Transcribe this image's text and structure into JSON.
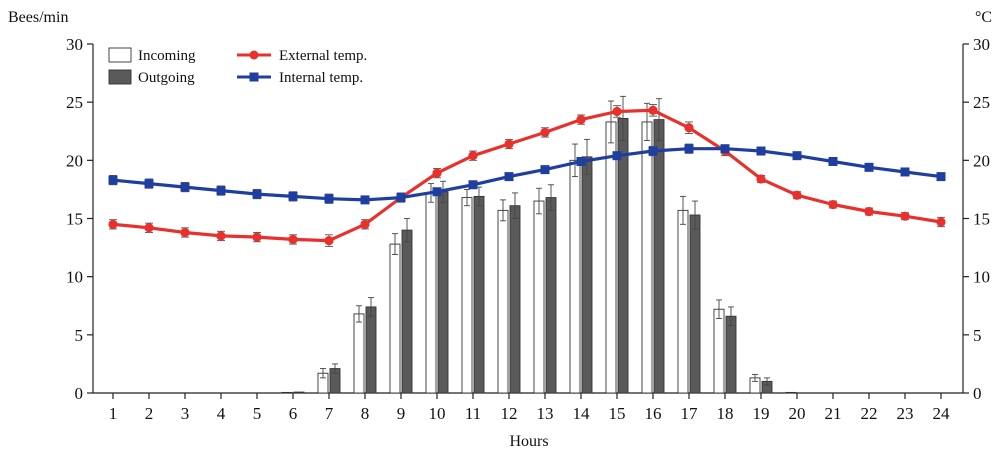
{
  "chart_data": {
    "type": "bar+line",
    "x": [
      1,
      2,
      3,
      4,
      5,
      6,
      7,
      8,
      9,
      10,
      11,
      12,
      13,
      14,
      15,
      16,
      17,
      18,
      19,
      20,
      21,
      22,
      23,
      24
    ],
    "xlabel": "Hours",
    "ylabel_left": "Bees/min",
    "ylabel_right": "°C",
    "ylim_left": [
      0,
      30
    ],
    "ylim_right": [
      0,
      30
    ],
    "yticks": [
      0,
      5,
      10,
      15,
      20,
      25,
      30
    ],
    "bar_series": [
      {
        "name": "Incoming",
        "color": "#ffffff",
        "values": [
          0,
          0,
          0,
          0,
          0,
          0.05,
          1.7,
          6.8,
          12.8,
          17.2,
          16.8,
          15.7,
          16.5,
          20.0,
          23.3,
          23.3,
          15.7,
          7.2,
          1.3,
          0.05,
          0,
          0,
          0,
          0
        ],
        "errors": [
          0,
          0,
          0,
          0,
          0,
          0.1,
          0.4,
          0.7,
          0.9,
          0.8,
          0.7,
          0.9,
          1.1,
          1.4,
          1.8,
          1.6,
          1.2,
          0.8,
          0.3,
          0.05,
          0,
          0,
          0,
          0
        ]
      },
      {
        "name": "Outgoing",
        "color": "#5a5a5a",
        "values": [
          0,
          0,
          0,
          0,
          0,
          0.08,
          2.1,
          7.4,
          14.0,
          17.3,
          16.9,
          16.1,
          16.8,
          20.3,
          23.6,
          23.5,
          15.3,
          6.6,
          1.0,
          0,
          0,
          0,
          0,
          0
        ],
        "errors": [
          0,
          0,
          0,
          0,
          0,
          0.1,
          0.4,
          0.8,
          1.0,
          0.9,
          0.8,
          1.1,
          1.1,
          1.5,
          1.9,
          1.8,
          1.2,
          0.8,
          0.3,
          0,
          0,
          0,
          0,
          0
        ]
      }
    ],
    "line_series": [
      {
        "name": "External temp.",
        "color": "#e8302c",
        "marker": "circle",
        "values": [
          14.5,
          14.2,
          13.8,
          13.5,
          13.4,
          13.2,
          13.1,
          14.5,
          16.8,
          18.9,
          20.4,
          21.4,
          22.4,
          23.5,
          24.2,
          24.3,
          22.8,
          20.8,
          18.4,
          17.0,
          16.2,
          15.6,
          15.2,
          14.7
        ],
        "errors": [
          0.4,
          0.4,
          0.4,
          0.4,
          0.4,
          0.4,
          0.5,
          0.4,
          0.4,
          0.4,
          0.4,
          0.4,
          0.4,
          0.4,
          0.5,
          0.5,
          0.5,
          0.4,
          0.3,
          0.3,
          0.3,
          0.3,
          0.3,
          0.4
        ]
      },
      {
        "name": "Internal temp.",
        "color": "#1f3fa0",
        "marker": "square",
        "values": [
          18.3,
          18.0,
          17.7,
          17.4,
          17.1,
          16.9,
          16.7,
          16.6,
          16.8,
          17.3,
          17.9,
          18.6,
          19.2,
          19.9,
          20.4,
          20.8,
          21.0,
          21.0,
          20.8,
          20.4,
          19.9,
          19.4,
          19.0,
          18.6
        ],
        "errors": [
          0.4,
          0.4,
          0.4,
          0.4,
          0.4,
          0.4,
          0.4,
          0.3,
          0.3,
          0.3,
          0.3,
          0.3,
          0.3,
          0.3,
          0.3,
          0.4,
          0.4,
          0.3,
          0.3,
          0.3,
          0.3,
          0.3,
          0.3,
          0.3
        ]
      }
    ]
  }
}
